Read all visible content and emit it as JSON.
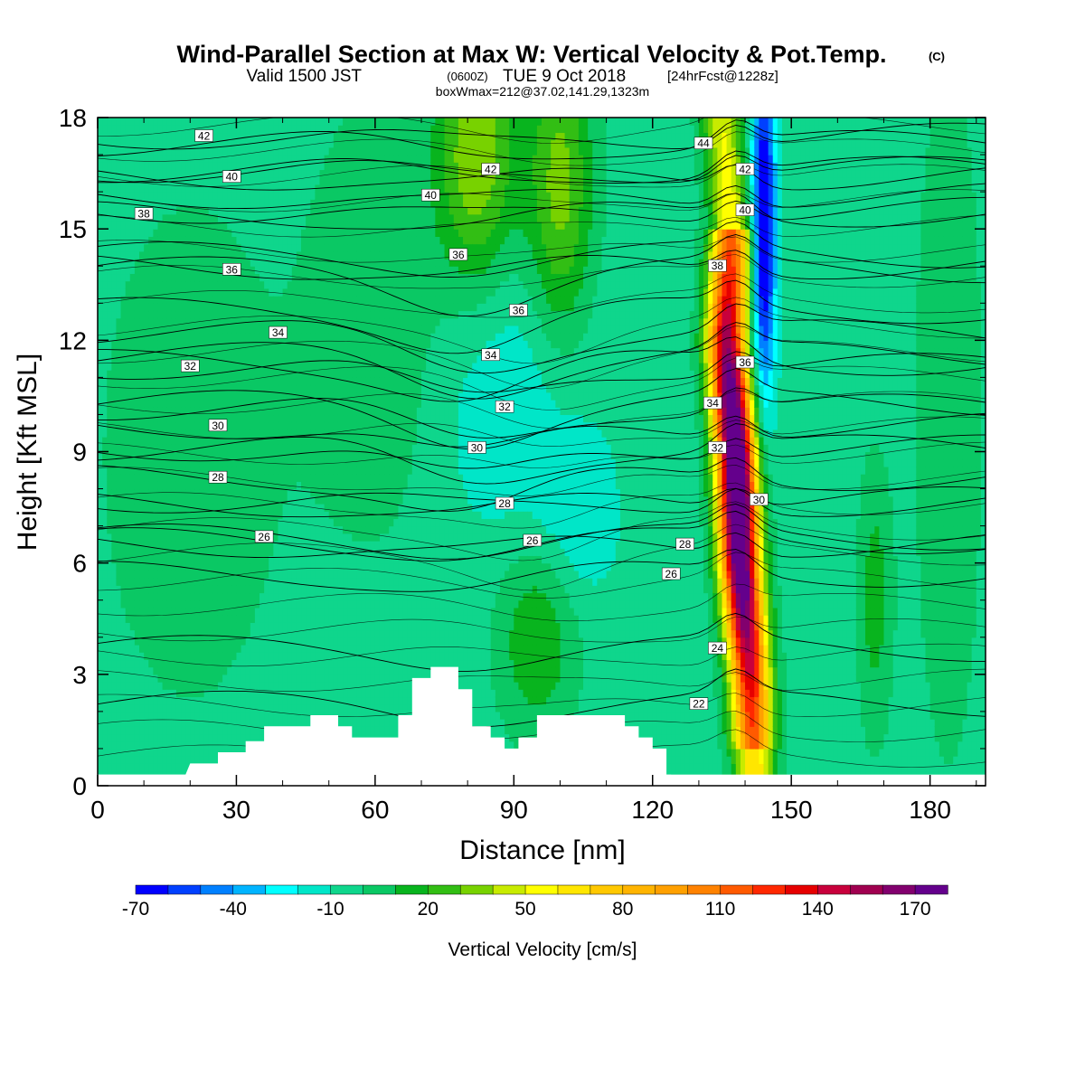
{
  "title": {
    "main": "Wind-Parallel Section at Max W: Vertical Velocity & Pot.Temp.",
    "copyright": "(C)",
    "valid_prefix": "Valid 1500 JST",
    "valid_utc": "(0600Z)",
    "valid_date": "TUE 9 Oct 2018",
    "forecast": "[24hrFcst@1228z]",
    "boxinfo": "boxWmax=212@37.02,141.29,1323m"
  },
  "colors": {
    "background": "#0fd68c",
    "terrain": "#ffffff",
    "contour": "#000000"
  },
  "chart_data": {
    "type": "heatmap",
    "title": "Wind-Parallel Section at Max W: Vertical Velocity & Pot.Temp.",
    "xlabel": "Distance [nm]",
    "ylabel": "Height [Kft MSL]",
    "xlim": [
      0,
      192
    ],
    "ylim": [
      0,
      18
    ],
    "xticks": [
      0,
      30,
      60,
      90,
      120,
      150,
      180
    ],
    "yticks": [
      0,
      3,
      6,
      9,
      12,
      15,
      18
    ],
    "colorbar": {
      "label": "Vertical Velocity [cm/s]",
      "tick_values": [
        -70,
        -40,
        -10,
        20,
        50,
        80,
        110,
        140,
        170
      ],
      "levels": [
        -70,
        -60,
        -50,
        -40,
        -30,
        -20,
        -10,
        0,
        10,
        20,
        30,
        40,
        50,
        60,
        70,
        80,
        90,
        100,
        110,
        120,
        130,
        140,
        150,
        160,
        170,
        180
      ],
      "colors": [
        "#0000ff",
        "#0040ff",
        "#0080ff",
        "#00b4ff",
        "#00ffff",
        "#00e6c8",
        "#0fd68c",
        "#0ac864",
        "#08b41e",
        "#32be14",
        "#78d200",
        "#c8eb00",
        "#ffff00",
        "#ffe600",
        "#ffc800",
        "#ffb400",
        "#ffa000",
        "#ff8200",
        "#ff5a00",
        "#ff2800",
        "#e60000",
        "#c8003c",
        "#a00050",
        "#82006e",
        "#64008c"
      ]
    },
    "updraft_core": {
      "x_center": 139,
      "w_max": 212,
      "x_at_heights": [
        [
          0.5,
          142
        ],
        [
          3,
          141
        ],
        [
          6,
          139
        ],
        [
          9,
          138
        ],
        [
          12,
          136
        ],
        [
          15,
          137
        ],
        [
          18,
          135
        ]
      ]
    },
    "downdraft_core": {
      "x_center": 144,
      "w_min": -70,
      "heights": [
        11,
        18
      ]
    },
    "terrain_profile": [
      [
        0,
        0.3
      ],
      [
        19,
        0.3
      ],
      [
        20,
        0.6
      ],
      [
        26,
        0.6
      ],
      [
        26,
        0.9
      ],
      [
        32,
        0.9
      ],
      [
        32,
        1.2
      ],
      [
        36,
        1.2
      ],
      [
        36,
        1.6
      ],
      [
        46,
        1.6
      ],
      [
        46,
        1.9
      ],
      [
        52,
        1.9
      ],
      [
        52,
        1.6
      ],
      [
        55,
        1.6
      ],
      [
        55,
        1.3
      ],
      [
        65,
        1.3
      ],
      [
        65,
        1.9
      ],
      [
        68,
        1.9
      ],
      [
        68,
        2.9
      ],
      [
        72,
        2.9
      ],
      [
        72,
        3.2
      ],
      [
        78,
        3.2
      ],
      [
        78,
        2.6
      ],
      [
        81,
        2.6
      ],
      [
        81,
        1.6
      ],
      [
        85,
        1.6
      ],
      [
        85,
        1.3
      ],
      [
        88,
        1.3
      ],
      [
        88,
        1.0
      ],
      [
        91,
        1.0
      ],
      [
        91,
        1.3
      ],
      [
        95,
        1.3
      ],
      [
        95,
        1.9
      ],
      [
        114,
        1.9
      ],
      [
        114,
        1.6
      ],
      [
        117,
        1.6
      ],
      [
        117,
        1.3
      ],
      [
        120,
        1.3
      ],
      [
        120,
        1.0
      ],
      [
        123,
        1.0
      ],
      [
        123,
        0.3
      ],
      [
        124,
        0.3
      ]
    ],
    "theta_contours": [
      {
        "label": "22",
        "x": 130,
        "y": 2.2
      },
      {
        "label": "24",
        "x": 134,
        "y": 3.7
      },
      {
        "label": "26",
        "x": 36,
        "y": 6.7
      },
      {
        "label": "26",
        "x": 94,
        "y": 6.6
      },
      {
        "label": "26",
        "x": 124,
        "y": 5.7
      },
      {
        "label": "28",
        "x": 26,
        "y": 8.3
      },
      {
        "label": "28",
        "x": 88,
        "y": 7.6
      },
      {
        "label": "28",
        "x": 127,
        "y": 6.5
      },
      {
        "label": "30",
        "x": 26,
        "y": 9.7
      },
      {
        "label": "30",
        "x": 82,
        "y": 9.1
      },
      {
        "label": "30",
        "x": 143,
        "y": 7.7
      },
      {
        "label": "32",
        "x": 20,
        "y": 11.3
      },
      {
        "label": "32",
        "x": 88,
        "y": 10.2
      },
      {
        "label": "32",
        "x": 134,
        "y": 9.1
      },
      {
        "label": "34",
        "x": 39,
        "y": 12.2
      },
      {
        "label": "34",
        "x": 85,
        "y": 11.6
      },
      {
        "label": "34",
        "x": 133,
        "y": 10.3
      },
      {
        "label": "36",
        "x": 29,
        "y": 13.9
      },
      {
        "label": "36",
        "x": 78,
        "y": 14.3
      },
      {
        "label": "36",
        "x": 91,
        "y": 12.8
      },
      {
        "label": "36",
        "x": 140,
        "y": 11.4
      },
      {
        "label": "38",
        "x": 10,
        "y": 15.4
      },
      {
        "label": "38",
        "x": 134,
        "y": 14.0
      },
      {
        "label": "40",
        "x": 29,
        "y": 16.4
      },
      {
        "label": "40",
        "x": 72,
        "y": 15.9
      },
      {
        "label": "40",
        "x": 140,
        "y": 15.5
      },
      {
        "label": "42",
        "x": 23,
        "y": 17.5
      },
      {
        "label": "42",
        "x": 85,
        "y": 16.6
      },
      {
        "label": "42",
        "x": 140,
        "y": 16.6
      },
      {
        "label": "44",
        "x": 131,
        "y": 17.3
      }
    ]
  }
}
